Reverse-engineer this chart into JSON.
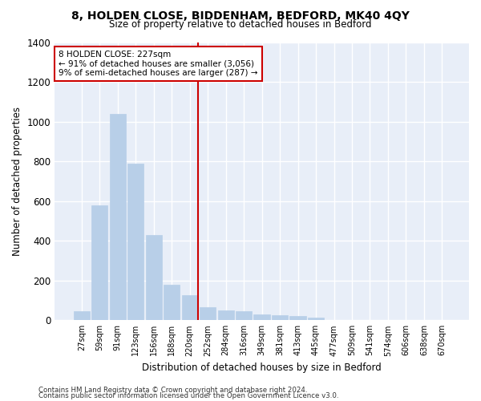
{
  "title": "8, HOLDEN CLOSE, BIDDENHAM, BEDFORD, MK40 4QY",
  "subtitle": "Size of property relative to detached houses in Bedford",
  "xlabel": "Distribution of detached houses by size in Bedford",
  "ylabel": "Number of detached properties",
  "footnote1": "Contains HM Land Registry data © Crown copyright and database right 2024.",
  "footnote2": "Contains public sector information licensed under the Open Government Licence v3.0.",
  "annotation_title": "8 HOLDEN CLOSE: 227sqm",
  "annotation_line1": "← 91% of detached houses are smaller (3,056)",
  "annotation_line2": "9% of semi-detached houses are larger (287) →",
  "vline_index": 6,
  "bar_values": [
    47,
    578,
    1040,
    787,
    430,
    178,
    128,
    65,
    48,
    45,
    30,
    27,
    20,
    12,
    0,
    0,
    0,
    0,
    0,
    0,
    0
  ],
  "categories": [
    "27sqm",
    "59sqm",
    "91sqm",
    "123sqm",
    "156sqm",
    "188sqm",
    "220sqm",
    "252sqm",
    "284sqm",
    "316sqm",
    "349sqm",
    "381sqm",
    "413sqm",
    "445sqm",
    "477sqm",
    "509sqm",
    "541sqm",
    "574sqm",
    "606sqm",
    "638sqm",
    "670sqm"
  ],
  "bar_color": "#b8cfe8",
  "bar_edge_color": "#b8cfe8",
  "vline_color": "#cc0000",
  "annotation_box_color": "#cc0000",
  "background_color": "#e8eef8",
  "ylim": [
    0,
    1400
  ],
  "yticks": [
    0,
    200,
    400,
    600,
    800,
    1000,
    1200,
    1400
  ]
}
